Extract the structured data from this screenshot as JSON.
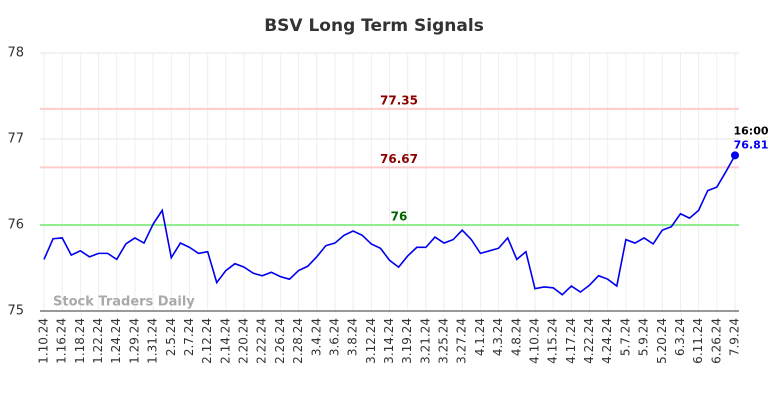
{
  "chart_data": {
    "type": "line",
    "title": "BSV Long Term Signals",
    "categories": [
      "1.10.24",
      null,
      "1.16.24",
      null,
      "1.18.24",
      null,
      "1.22.24",
      null,
      "1.24.24",
      null,
      "1.29.24",
      null,
      "1.31.24",
      null,
      "2.5.24",
      null,
      "2.7.24",
      null,
      "2.12.24",
      null,
      "2.14.24",
      null,
      "2.20.24",
      null,
      "2.22.24",
      null,
      "2.26.24",
      null,
      "2.28.24",
      null,
      "3.4.24",
      null,
      "3.6.24",
      null,
      "3.8.24",
      null,
      "3.12.24",
      null,
      "3.14.24",
      null,
      "3.19.24",
      null,
      "3.21.24",
      null,
      "3.25.24",
      null,
      "3.27.24",
      null,
      "4.1.24",
      null,
      "4.3.24",
      null,
      "4.8.24",
      null,
      "4.10.24",
      null,
      "4.15.24",
      null,
      "4.17.24",
      null,
      "4.22.24",
      null,
      "4.24.24",
      null,
      "5.7.24",
      null,
      "5.9.24",
      null,
      "5.20.24",
      null,
      "6.3.24",
      null,
      "6.11.24",
      null,
      "6.26.24",
      null,
      "7.9.24"
    ],
    "values": [
      75.6,
      75.84,
      75.85,
      75.65,
      75.7,
      75.63,
      75.67,
      75.67,
      75.6,
      75.78,
      75.85,
      75.79,
      76.01,
      76.17,
      75.62,
      75.79,
      75.74,
      75.67,
      75.69,
      75.33,
      75.47,
      75.55,
      75.51,
      75.44,
      75.41,
      75.45,
      75.4,
      75.37,
      75.47,
      75.52,
      75.63,
      75.76,
      75.79,
      75.88,
      75.93,
      75.88,
      75.78,
      75.73,
      75.59,
      75.51,
      75.64,
      75.74,
      75.74,
      75.86,
      75.79,
      75.83,
      75.94,
      75.83,
      75.67,
      75.7,
      75.73,
      75.85,
      75.6,
      75.69,
      75.26,
      75.28,
      75.27,
      75.19,
      75.29,
      75.22,
      75.3,
      75.41,
      75.37,
      75.29,
      75.83,
      75.79,
      75.85,
      75.78,
      75.94,
      75.98,
      76.13,
      76.08,
      76.17,
      76.4,
      76.44,
      76.62,
      76.81
    ],
    "color": "#0000ee",
    "ylim": [
      75,
      78
    ],
    "yticks": [
      75,
      76,
      77,
      78
    ],
    "grid": true,
    "hlines": [
      {
        "value": 77.35,
        "color": "#ffcccc",
        "label_color": "#8b0000"
      },
      {
        "value": 76.67,
        "color": "#ffcccc",
        "label_color": "#8b0000"
      },
      {
        "value": 76,
        "color": "#90ee90",
        "label_color": "#006400"
      }
    ],
    "last_time": "16:00",
    "watermark": "Stock Traders Daily"
  }
}
